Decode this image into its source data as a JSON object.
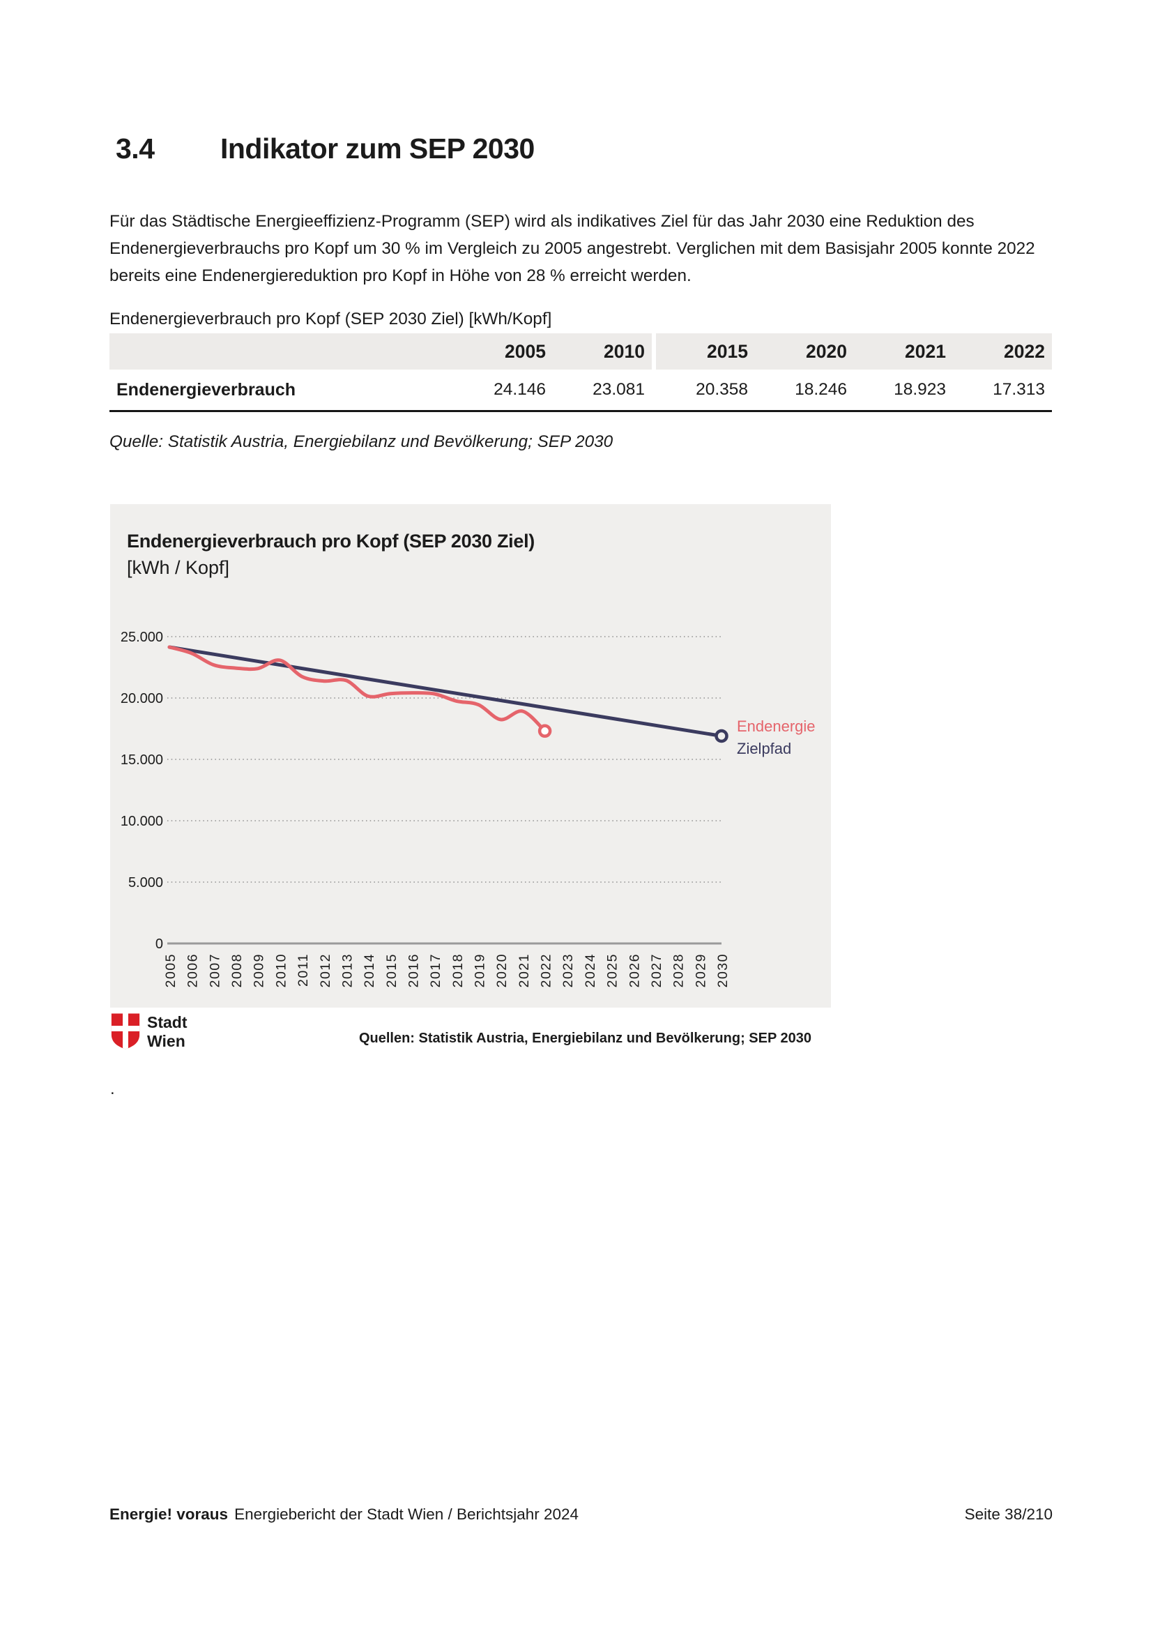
{
  "page": {
    "heading_number": "3.4",
    "heading_title": "Indikator zum SEP 2030",
    "intro": "Für das Städtische Energieeffizienz-Programm (SEP) wird als indikatives Ziel für das Jahr 2030 eine Reduktion des Endenergieverbrauchs pro Kopf um 30 % im Vergleich zu 2005 angestrebt. Verglichen mit dem Basisjahr 2005 konnte 2022 bereits eine Endenergiereduktion pro Kopf in Höhe von 28 % erreicht werden.",
    "stray_dot": "."
  },
  "table": {
    "title": "Endenergieverbrauch pro Kopf (SEP 2030 Ziel) [kWh/Kopf]",
    "columns": [
      "2005",
      "2010",
      "2015",
      "2020",
      "2021",
      "2022"
    ],
    "rows": [
      {
        "label": "Endenergieverbrauch",
        "values": [
          "24.146",
          "23.081",
          "20.358",
          "18.246",
          "18.923",
          "17.313"
        ]
      }
    ],
    "source": "Quelle: Statistik Austria, Energiebilanz und Bevölkerung; SEP 2030"
  },
  "chart": {
    "title": "Endenergieverbrauch pro Kopf (SEP 2030 Ziel)",
    "subtitle": "[kWh / Kopf]",
    "source": "Quellen: Statistik Austria, Energiebilanz und Bevölkerung; SEP 2030",
    "legend": {
      "endenergie": "Endenergie",
      "zielpfad": "Zielpfad"
    },
    "colors": {
      "endenergie": "#e5646b",
      "zielpfad": "#3b3b5f",
      "panel_bg": "#f0efed",
      "grid": "#8f8f8f",
      "axis": "#9a9a9a",
      "tick_text": "#1c1c1c"
    }
  },
  "chart_data": {
    "type": "line",
    "title": "Endenergieverbrauch pro Kopf (SEP 2030 Ziel)",
    "ylabel": "kWh / Kopf",
    "xlim": [
      2005,
      2030
    ],
    "ylim": [
      0,
      25000
    ],
    "grid": "horizontal-dotted",
    "legend_position": "right-of-line-end",
    "x": [
      2005,
      2006,
      2007,
      2008,
      2009,
      2010,
      2011,
      2012,
      2013,
      2014,
      2015,
      2016,
      2017,
      2018,
      2019,
      2020,
      2021,
      2022,
      2023,
      2024,
      2025,
      2026,
      2027,
      2028,
      2029,
      2030
    ],
    "yticks": [
      {
        "value": 25000,
        "label": "25.000"
      },
      {
        "value": 20000,
        "label": "20.000"
      },
      {
        "value": 15000,
        "label": "15.000"
      },
      {
        "value": 10000,
        "label": "10.000"
      },
      {
        "value": 5000,
        "label": "5.000"
      },
      {
        "value": 0,
        "label": "0"
      }
    ],
    "series": [
      {
        "name": "Endenergie",
        "color": "#e5646b",
        "smooth": true,
        "end_marker": true,
        "marker_fill": "#ffffff",
        "x": [
          2005,
          2006,
          2007,
          2008,
          2009,
          2010,
          2011,
          2012,
          2013,
          2014,
          2015,
          2016,
          2017,
          2018,
          2019,
          2020,
          2021,
          2022
        ],
        "values": [
          24146,
          23650,
          22700,
          22440,
          22400,
          23081,
          21750,
          21380,
          21430,
          20150,
          20358,
          20420,
          20340,
          19750,
          19450,
          18246,
          18923,
          17313
        ]
      },
      {
        "name": "Zielpfad",
        "color": "#3b3b5f",
        "smooth": false,
        "end_marker": true,
        "marker_fill": "#f0efed",
        "x": [
          2005,
          2030
        ],
        "values": [
          24146,
          16902
        ]
      }
    ]
  },
  "logo": {
    "name": "Stadt Wien",
    "line1": "Stadt",
    "line2": "Wien"
  },
  "footer": {
    "brand": "Energie! voraus",
    "title": "Energiebericht der Stadt Wien / Berichtsjahr 2024",
    "page": "Seite 38/210"
  }
}
